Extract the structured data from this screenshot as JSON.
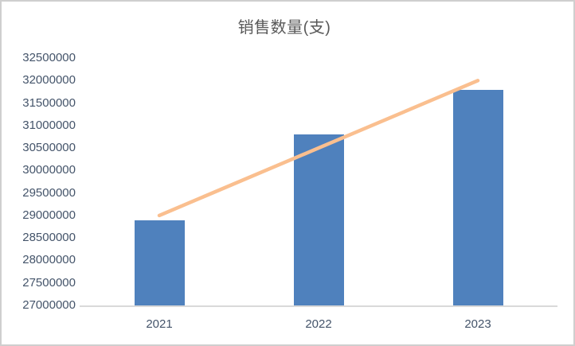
{
  "chart_data": {
    "type": "bar",
    "title": "销售数量(支)",
    "categories": [
      "2021",
      "2022",
      "2023"
    ],
    "series": [
      {
        "name": "bars",
        "kind": "bar",
        "values": [
          28900000,
          30800000,
          31800000
        ],
        "color": "#4f81bd"
      },
      {
        "name": "trendline",
        "kind": "line",
        "values": [
          29000000,
          30500000,
          32000000
        ],
        "color": "#fabf8f"
      }
    ],
    "ylim": [
      27000000,
      32500000
    ],
    "y_tick_step": 500000,
    "y_tick_labels": [
      "32500000",
      "32000000",
      "31500000",
      "31000000",
      "30500000",
      "30000000",
      "29500000",
      "29000000",
      "28500000",
      "28000000",
      "27500000",
      "27000000"
    ],
    "xlabel": "",
    "ylabel": "",
    "grid": false,
    "legend_position": "none"
  },
  "colors": {
    "title_text": "#595959",
    "axis_text": "#44546a",
    "axis_line": "#d9d9d9",
    "frame_border": "#cfcfcf",
    "background": "#ffffff"
  }
}
